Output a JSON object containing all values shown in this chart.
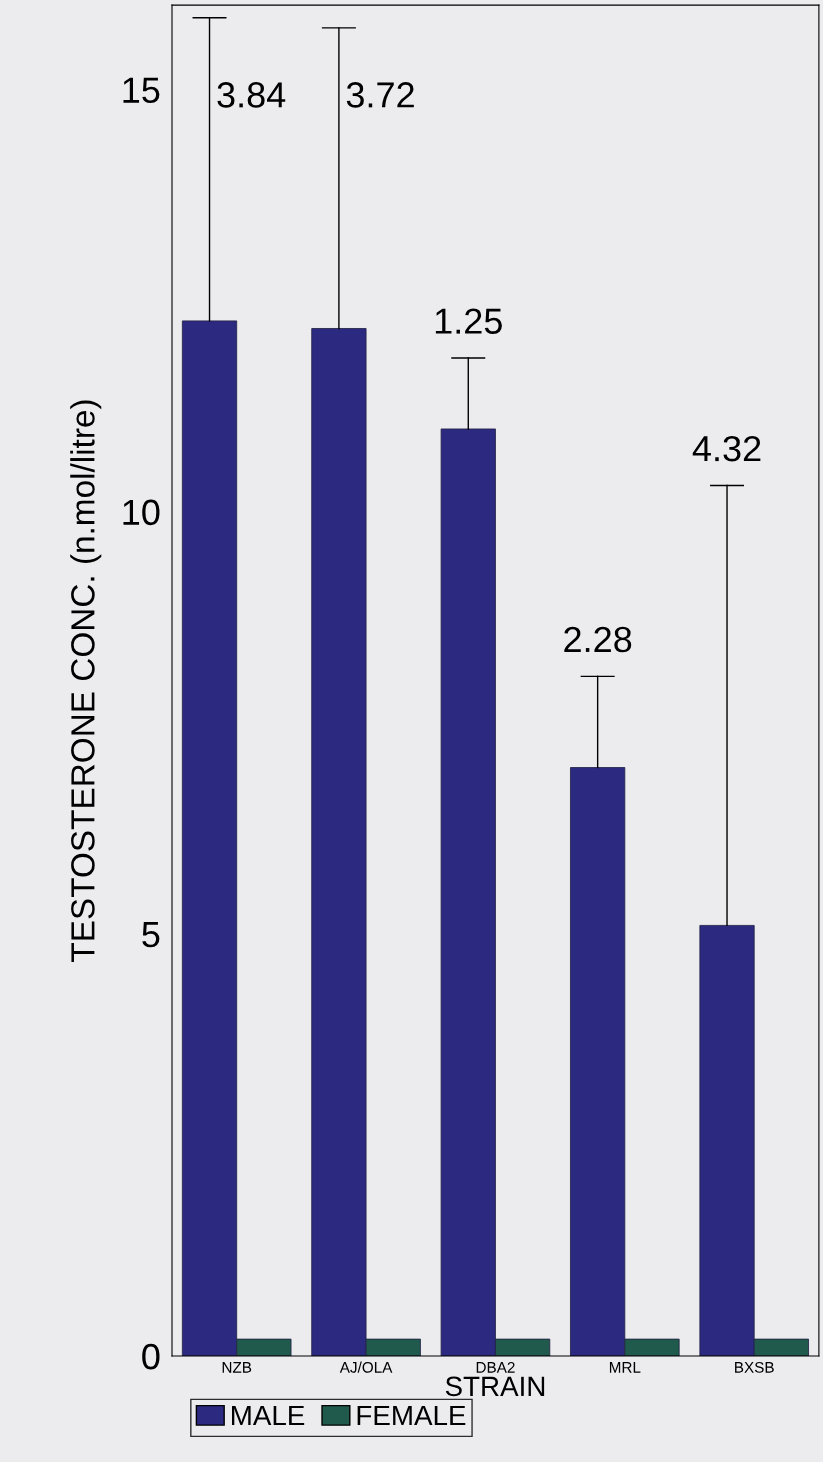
{
  "chart_data": {
    "type": "bar",
    "xlabel": "STRAIN",
    "ylabel": "TESTOSTERONE CONC. (n.mol/litre)",
    "categories": [
      "NZB",
      "AJ/OLA",
      "DBA2",
      "MRL",
      "BXSB"
    ],
    "series": [
      {
        "name": "MALE",
        "color": "#2c2a80",
        "values": [
          12.26,
          12.17,
          10.98,
          6.97,
          5.1
        ],
        "errors": [
          [
            12.26,
            15.85
          ],
          [
            12.17,
            15.73
          ],
          [
            10.98,
            11.82
          ],
          [
            6.97,
            8.05
          ],
          [
            5.1,
            10.31
          ]
        ]
      },
      {
        "name": "FEMALE",
        "color": "#1f5a4c",
        "values": [
          0.2,
          0.2,
          0.2,
          0.2,
          0.2
        ]
      }
    ],
    "ylim": [
      0,
      16
    ],
    "yticks": [
      0,
      5,
      10,
      15
    ],
    "grid": false,
    "legend": "bottom left",
    "annotations": [
      "3.84",
      "3.72",
      "1.25",
      "2.28",
      "4.32"
    ]
  }
}
